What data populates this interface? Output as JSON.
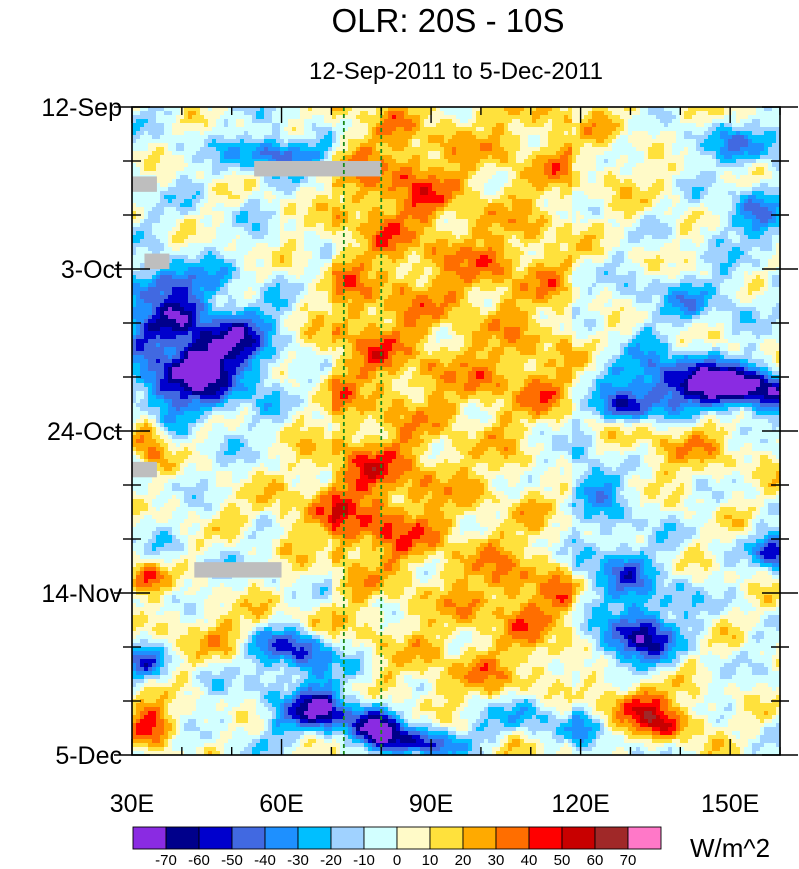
{
  "chart_data": {
    "type": "heatmap",
    "title": "OLR: 20S - 10S",
    "subtitle": "12-Sep-2011 to 5-Dec-2011",
    "units_label": "W/m^2",
    "x_axis": {
      "min": 30,
      "max": 160,
      "ticks": [
        {
          "value": 30,
          "label": "30E"
        },
        {
          "value": 60,
          "label": "60E"
        },
        {
          "value": 90,
          "label": "90E"
        },
        {
          "value": 120,
          "label": "120E"
        },
        {
          "value": 150,
          "label": "150E"
        }
      ],
      "minor_step": 10
    },
    "y_axis": {
      "min_day": 0,
      "max_day": 84,
      "direction": "top-to-bottom",
      "ticks": [
        {
          "day": 0,
          "label": "12-Sep"
        },
        {
          "day": 21,
          "label": "3-Oct"
        },
        {
          "day": 42,
          "label": "24-Oct"
        },
        {
          "day": 63,
          "label": "14-Nov"
        },
        {
          "day": 84,
          "label": "5-Dec"
        }
      ],
      "minor_step": 7
    },
    "reference_lines_lon": [
      72.5,
      80
    ],
    "colorbar": {
      "levels": [
        -70,
        -60,
        -50,
        -40,
        -30,
        -20,
        -10,
        0,
        10,
        20,
        30,
        40,
        50,
        60,
        70
      ],
      "labels": [
        "-70",
        "-60",
        "-50",
        "-40",
        "-30",
        "-20",
        "-10",
        "0",
        "10",
        "20",
        "30",
        "40",
        "50",
        "60",
        "70"
      ],
      "colors": [
        "#8a2be2",
        "#00008b",
        "#0000cd",
        "#4169e1",
        "#1e90ff",
        "#00bfff",
        "#a0d2ff",
        "#d2ffff",
        "#fffac8",
        "#ffe13c",
        "#ffaa00",
        "#ff6e00",
        "#ff0000",
        "#c80000",
        "#a02828",
        "#ff78c8"
      ]
    },
    "features": [
      {
        "lon": 45,
        "day": 32,
        "value": -72,
        "lon_w": 7,
        "day_w": 3.5,
        "tilt": -0.35
      },
      {
        "lon": 37,
        "day": 28,
        "value": -48,
        "lon_w": 6,
        "day_w": 2.5,
        "tilt": -0.3
      },
      {
        "lon": 36,
        "day": 23,
        "value": -45,
        "lon_w": 7,
        "day_w": 1.8,
        "tilt": -0.2
      },
      {
        "lon": 45,
        "day": 37,
        "value": -32,
        "lon_w": 9,
        "day_w": 3,
        "tilt": -0.4
      },
      {
        "lon": 33,
        "day": 43,
        "value": 45,
        "lon_w": 3,
        "day_w": 2.5,
        "tilt": 0
      },
      {
        "lon": 32,
        "day": 61,
        "value": 42,
        "lon_w": 3,
        "day_w": 1.5,
        "tilt": 0
      },
      {
        "lon": 34,
        "day": 80,
        "value": 50,
        "lon_w": 4,
        "day_w": 2,
        "tilt": 0
      },
      {
        "lon": 32,
        "day": 72,
        "value": -40,
        "lon_w": 3,
        "day_w": 1.5,
        "tilt": 0
      },
      {
        "lon": 61,
        "day": 70,
        "value": -55,
        "lon_w": 5,
        "day_w": 1.8,
        "tilt": 0
      },
      {
        "lon": 68,
        "day": 73,
        "value": -25,
        "lon_w": 7,
        "day_w": 2.5,
        "tilt": 0
      },
      {
        "lon": 68,
        "day": 78.5,
        "value": -65,
        "lon_w": 6,
        "day_w": 2,
        "tilt": 0
      },
      {
        "lon": 79,
        "day": 80.5,
        "value": -60,
        "lon_w": 4,
        "day_w": 2,
        "tilt": 0
      },
      {
        "lon": 88,
        "day": 82.5,
        "value": -60,
        "lon_w": 6,
        "day_w": 1.5,
        "tilt": 0
      },
      {
        "lon": 112,
        "day": 79,
        "value": -35,
        "lon_w": 14,
        "day_w": 2.5,
        "tilt": 0
      },
      {
        "lon": 60,
        "day": 6,
        "value": -50,
        "lon_w": 6,
        "day_w": 1.5,
        "tilt": 0
      },
      {
        "lon": 128,
        "day": 61,
        "value": -38,
        "lon_w": 7,
        "day_w": 4,
        "tilt": 0.25
      },
      {
        "lon": 131,
        "day": 69,
        "value": -62,
        "lon_w": 5,
        "day_w": 2.5,
        "tilt": 0
      },
      {
        "lon": 130,
        "day": 77.5,
        "value": 55,
        "lon_w": 6,
        "day_w": 2,
        "tilt": 0
      },
      {
        "lon": 138,
        "day": 80,
        "value": 40,
        "lon_w": 5,
        "day_w": 1.5,
        "tilt": 0
      },
      {
        "lon": 152,
        "day": 36.5,
        "value": -72,
        "lon_w": 9,
        "day_w": 2,
        "tilt": 0.25
      },
      {
        "lon": 138,
        "day": 35,
        "value": -42,
        "lon_w": 10,
        "day_w": 2.5,
        "tilt": 0.3
      },
      {
        "lon": 129,
        "day": 39,
        "value": -58,
        "lon_w": 5,
        "day_w": 1.5,
        "tilt": 0
      },
      {
        "lon": 159,
        "day": 57.5,
        "value": -55,
        "lon_w": 3,
        "day_w": 1.5,
        "tilt": 0
      },
      {
        "lon": 152,
        "day": 5,
        "value": -30,
        "lon_w": 12,
        "day_w": 2,
        "tilt": 0
      },
      {
        "lon": 155,
        "day": 14,
        "value": -30,
        "lon_w": 6,
        "day_w": 3,
        "tilt": 0
      },
      {
        "lon": 122,
        "day": 48,
        "value": -30,
        "lon_w": 5,
        "day_w": 4,
        "tilt": 0.3
      },
      {
        "lon": 78,
        "day": 55,
        "value": 25,
        "lon_w": 10,
        "day_w": 3,
        "tilt": 0
      },
      {
        "lon": 78,
        "day": 47,
        "value": 22,
        "lon_w": 10,
        "day_w": 3,
        "tilt": 0
      },
      {
        "lon": 84,
        "day": 10,
        "value": 24,
        "lon_w": 8,
        "day_w": 5,
        "tilt": 0
      },
      {
        "lon": 77,
        "day": 30,
        "value": 18,
        "lon_w": 9,
        "day_w": 8,
        "tilt": 0
      },
      {
        "lon": 110,
        "day": 35,
        "value": 18,
        "lon_w": 12,
        "day_w": 4,
        "tilt": 0
      },
      {
        "lon": 103,
        "day": 21,
        "value": 16,
        "lon_w": 10,
        "day_w": 4,
        "tilt": 0
      },
      {
        "lon": 110,
        "day": 63,
        "value": 22,
        "lon_w": 10,
        "day_w": 4,
        "tilt": 0
      },
      {
        "lon": 50,
        "day": 68,
        "value": 20,
        "lon_w": 12,
        "day_w": 3,
        "tilt": 0
      },
      {
        "lon": 140,
        "day": 44,
        "value": 18,
        "lon_w": 10,
        "day_w": 3,
        "tilt": 0
      },
      {
        "lon": 60,
        "day": 52,
        "value": 15,
        "lon_w": 12,
        "day_w": 2,
        "tilt": 0
      },
      {
        "lon": 125,
        "day": 5,
        "value": 12,
        "lon_w": 15,
        "day_w": 5,
        "tilt": 0
      },
      {
        "lon": 142,
        "day": 25,
        "value": -22,
        "lon_w": 10,
        "day_w": 2.5,
        "tilt": 0
      },
      {
        "lon": 100,
        "day": 75,
        "value": 15,
        "lon_w": 10,
        "day_w": 3,
        "tilt": 0
      }
    ],
    "missing_data": [
      {
        "lon0": 30,
        "lon1": 35,
        "day0": 9,
        "day1": 11
      },
      {
        "lon0": 54.5,
        "lon1": 80,
        "day0": 7,
        "day1": 9
      },
      {
        "lon0": 32.5,
        "lon1": 37.5,
        "day0": 19,
        "day1": 21
      },
      {
        "lon0": 30,
        "lon1": 35,
        "day0": 46,
        "day1": 48
      },
      {
        "lon0": 42.5,
        "lon1": 60,
        "day0": 59,
        "day1": 61
      }
    ]
  }
}
